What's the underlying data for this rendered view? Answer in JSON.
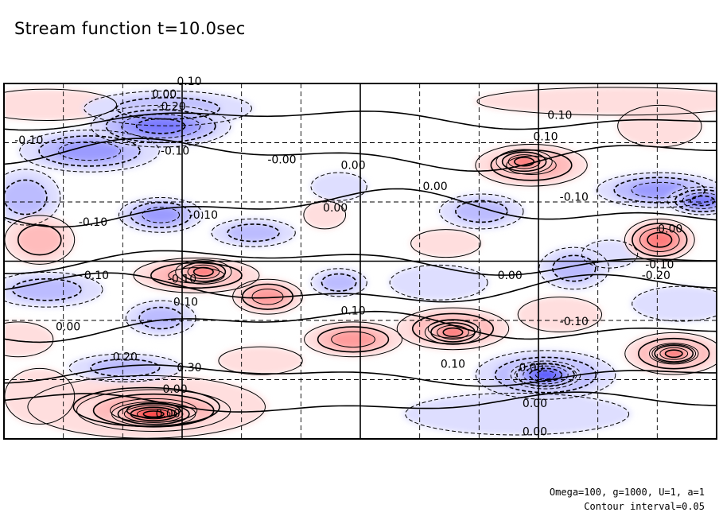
{
  "chart_data": {
    "type": "heatmap",
    "title": "Stream function t=10.0sec",
    "xlabel": "",
    "ylabel": "",
    "colormap": {
      "negative": "#3a3aff",
      "zero": "#ffffff",
      "positive": "#ff3a3a"
    },
    "contour_interval": 0.05,
    "field_range": [
      -0.3,
      0.3
    ],
    "contour_labels": [
      {
        "text": "0.10",
        "x": 0.105,
        "y": 0.985
      },
      {
        "text": "0.00",
        "x": 0.09,
        "y": 0.955
      },
      {
        "text": "-0.20",
        "x": 0.095,
        "y": 0.93
      },
      {
        "text": "-0.10",
        "x": 0.04,
        "y": 0.84
      },
      {
        "text": "-0.10",
        "x": 0.095,
        "y": 0.79
      },
      {
        "text": "-0.00",
        "x": 0.155,
        "y": 0.78
      },
      {
        "text": "-0.10",
        "x": 0.11,
        "y": 0.62
      },
      {
        "text": "0.00",
        "x": 0.05,
        "y": 0.62
      },
      {
        "text": "0.00",
        "x": 0.05,
        "y": 0.44
      },
      {
        "text": "-0.10",
        "x": 0.095,
        "y": 0.43
      },
      {
        "text": "0.10",
        "x": 0.105,
        "y": 0.38
      },
      {
        "text": "-0.10",
        "x": 0.09,
        "y": 0.37
      },
      {
        "text": "0.10",
        "x": 0.033,
        "y": 0.31
      },
      {
        "text": "0.10",
        "x": 0.07,
        "y": 0.21
      },
      {
        "text": "0.00",
        "x": 0.105,
        "y": 0.2
      },
      {
        "text": "0.20",
        "x": 0.11,
        "y": 0.13
      },
      {
        "text": "0.30",
        "x": 0.095,
        "y": 0.06
      },
      {
        "text": "0.00",
        "x": 0.2,
        "y": 0.77
      },
      {
        "text": "0.00",
        "x": 0.245,
        "y": 0.6
      },
      {
        "text": "0.10",
        "x": 0.25,
        "y": 0.35
      },
      {
        "text": "0.00",
        "x": 0.335,
        "y": 0.7
      },
      {
        "text": "0.00",
        "x": 0.4,
        "y": 0.44
      },
      {
        "text": "0.00",
        "x": 0.345,
        "y": 0.2
      },
      {
        "text": "0.10",
        "x": 0.385,
        "y": 0.9
      },
      {
        "text": "0.10",
        "x": 0.385,
        "y": 0.845
      },
      {
        "text": "-0.10",
        "x": 0.4,
        "y": 0.61
      },
      {
        "text": "-0.10",
        "x": 0.41,
        "y": 0.31
      },
      {
        "text": "-0.10",
        "x": 0.375,
        "y": 0.2
      },
      {
        "text": "0.00",
        "x": 0.45,
        "y": 0.44
      },
      {
        "text": "-0.20",
        "x": 0.375,
        "y": 0.1
      },
      {
        "text": "0.00",
        "x": 0.38,
        "y": 0.005
      },
      {
        "text": "0.00",
        "x": 0.455,
        "y": 0.45
      }
    ],
    "footnotes": [
      "Omega=100, g=1000, U=1, a=1",
      "Contour interval=0.05"
    ]
  },
  "title": "Stream function t=10.0sec",
  "footnote_line1": "Omega=100, g=1000, U=1, a=1",
  "footnote_line2": "Contour interval=0.05"
}
